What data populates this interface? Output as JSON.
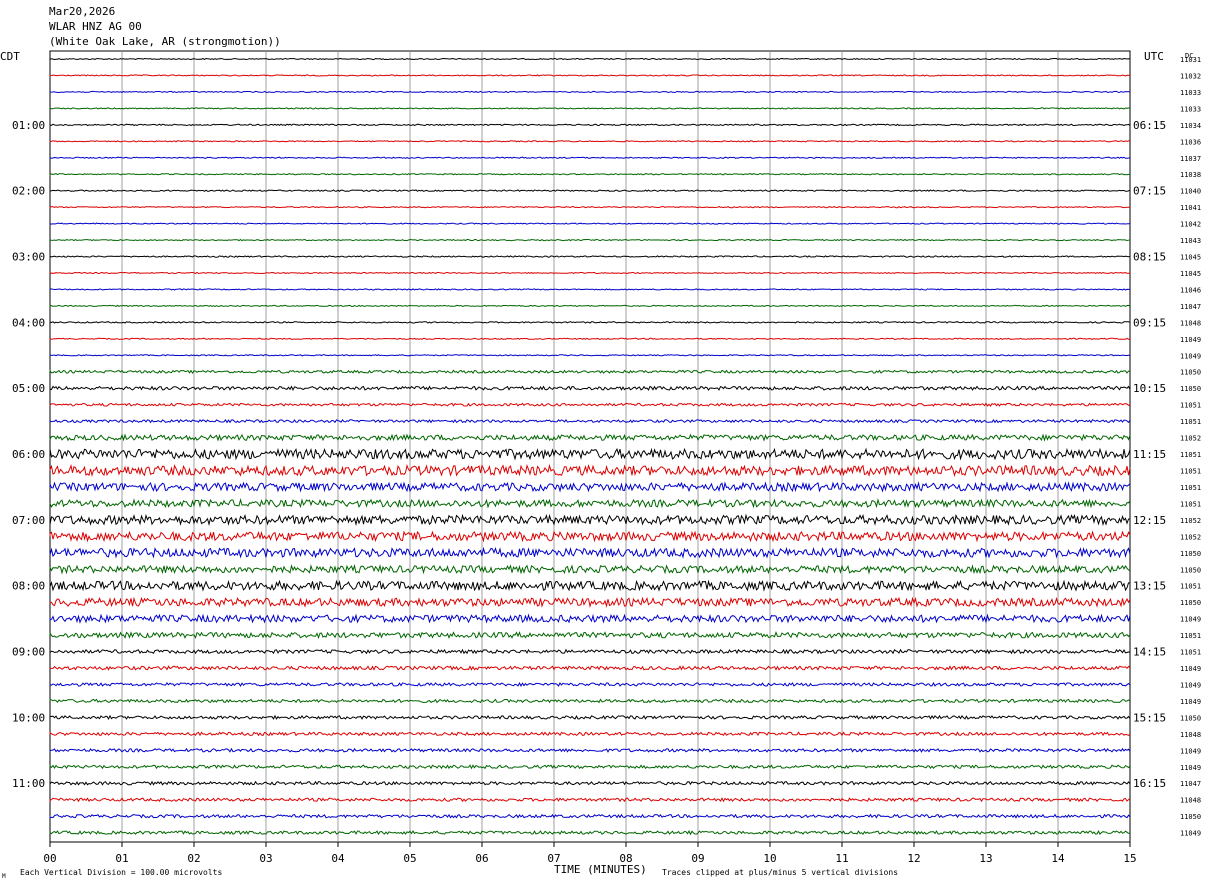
{
  "header": {
    "date": "Mar20,2026",
    "station": "WLAR HNZ AG 00",
    "location": "(White Oak Lake, AR (strongmotion))"
  },
  "axes": {
    "left_label": "CDT",
    "right_label": "UTC",
    "dc_label": "DC",
    "x_title": "TIME (MINUTES)"
  },
  "footer": {
    "scale_note": "Each Vertical Division =  100.00 microvolts",
    "clip_note": "Traces clipped at plus/minus 5 vertical divisions",
    "corner_mark": "M"
  },
  "chart_data": {
    "type": "line",
    "title": "WLAR HNZ AG 00",
    "xlabel": "TIME (MINUTES)",
    "xlim": [
      0,
      15
    ],
    "x_ticks": [
      "00",
      "01",
      "02",
      "03",
      "04",
      "05",
      "06",
      "07",
      "08",
      "09",
      "10",
      "11",
      "12",
      "13",
      "14",
      "15"
    ],
    "left_time_labels": [
      "01:00",
      "02:00",
      "03:00",
      "04:00",
      "05:00",
      "06:00",
      "07:00",
      "08:00",
      "09:00",
      "10:00",
      "11:00"
    ],
    "right_time_labels": [
      "06:15",
      "07:15",
      "08:15",
      "09:15",
      "10:15",
      "11:15",
      "12:15",
      "13:15",
      "14:15",
      "15:15",
      "16:15"
    ],
    "trace_colors": [
      "#000000",
      "#dd0000",
      "#0000cc",
      "#006600"
    ],
    "dc_offsets": [
      "11031",
      "11032",
      "11033",
      "11033",
      "11034",
      "11036",
      "11037",
      "11038",
      "11040",
      "11041",
      "11042",
      "11043",
      "11045",
      "11045",
      "11046",
      "11047",
      "11048",
      "11049",
      "11049",
      "11050",
      "11050",
      "11051",
      "11051",
      "11052",
      "11051",
      "11051",
      "11051",
      "11051",
      "11052",
      "11052",
      "11050",
      "11050",
      "11051",
      "11050",
      "11049",
      "11051",
      "11051",
      "11049",
      "11049",
      "11049",
      "11050",
      "11048",
      "11049",
      "11049",
      "11047",
      "11048",
      "11050",
      "11049"
    ],
    "noise_levels": [
      0.25,
      0.25,
      0.25,
      0.25,
      0.3,
      0.25,
      0.25,
      0.25,
      0.3,
      0.25,
      0.25,
      0.25,
      0.3,
      0.25,
      0.25,
      0.25,
      0.3,
      0.25,
      0.25,
      0.6,
      0.8,
      0.6,
      0.6,
      1.2,
      2.2,
      2.2,
      1.8,
      1.6,
      2.0,
      2.0,
      2.0,
      1.6,
      2.0,
      1.8,
      1.6,
      1.2,
      0.8,
      0.8,
      0.7,
      0.7,
      0.7,
      0.7,
      0.7,
      0.7,
      0.7,
      0.7,
      0.7,
      0.7
    ]
  }
}
